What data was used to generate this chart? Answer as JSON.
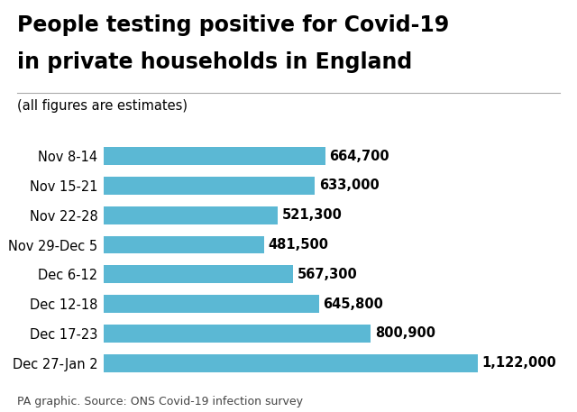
{
  "title_line1": "People testing positive for Covid-19",
  "title_line2": "in private households in England",
  "subtitle": "(all figures are estimates)",
  "footer": "PA graphic. Source: ONS Covid-19 infection survey",
  "categories": [
    "Nov 8-14",
    "Nov 15-21",
    "Nov 22-28",
    "Nov 29-Dec 5",
    "Dec 6-12",
    "Dec 12-18",
    "Dec 17-23",
    "Dec 27-Jan 2"
  ],
  "values": [
    664700,
    633000,
    521300,
    481500,
    567300,
    645800,
    800900,
    1122000
  ],
  "labels": [
    "664,700",
    "633,000",
    "521,300",
    "481,500",
    "567,300",
    "645,800",
    "800,900",
    "1,122,000"
  ],
  "bar_color": "#5BB8D4",
  "title_fontsize": 17,
  "subtitle_fontsize": 10.5,
  "label_fontsize": 10.5,
  "tick_fontsize": 10.5,
  "footer_fontsize": 9,
  "background_color": "#ffffff",
  "text_color": "#000000",
  "xlim": [
    0,
    1350000
  ]
}
